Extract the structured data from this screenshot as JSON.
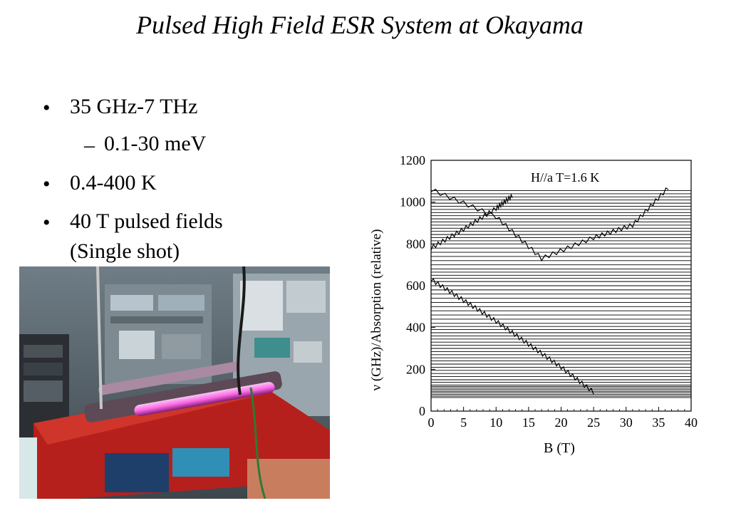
{
  "slide": {
    "title": "Pulsed High Field ESR System at Okayama",
    "bullets": [
      {
        "text": "35 GHz-7 THz",
        "level": 1
      },
      {
        "text": "0.1-30 meV",
        "level": 2
      },
      {
        "text": "0.4-400 K",
        "level": 1
      },
      {
        "text": "40 T pulsed fields",
        "level": 1
      },
      {
        "text": "(Single shot)",
        "level": 1
      }
    ],
    "markers": {
      "level1": "•",
      "level2": "–"
    }
  },
  "chart_data": {
    "type": "line",
    "title": "",
    "annotation": "H//a T=1.6 K",
    "xlabel": "B (T)",
    "ylabel": "ν (GHz)/Absorption (relative)",
    "xlim": [
      0,
      40
    ],
    "ylim": [
      0,
      1200
    ],
    "xticks": [
      0,
      5,
      10,
      15,
      20,
      25,
      30,
      35,
      40
    ],
    "yticks": [
      0,
      200,
      400,
      600,
      800,
      1000,
      1200
    ],
    "baseline_frequencies_ghz": [
      65,
      72,
      80,
      88,
      95,
      103,
      110,
      118,
      125,
      138,
      150,
      165,
      180,
      195,
      210,
      225,
      240,
      255,
      270,
      285,
      300,
      315,
      330,
      345,
      360,
      375,
      390,
      405,
      420,
      440,
      460,
      480,
      500,
      520,
      540,
      560,
      580,
      600,
      620,
      635,
      650,
      665,
      680,
      700,
      720,
      740,
      760,
      780,
      800,
      815,
      830,
      845,
      860,
      875,
      890,
      905,
      920,
      935,
      950,
      965,
      980,
      995,
      1010,
      1025,
      1040,
      1055
    ],
    "resonance_branches": [
      {
        "points": [
          [
            0,
            620
          ],
          [
            5,
            520
          ],
          [
            10,
            420
          ],
          [
            15,
            310
          ],
          [
            20,
            200
          ],
          [
            25,
            80
          ]
        ]
      },
      {
        "points": [
          [
            0,
            770
          ],
          [
            5,
            860
          ],
          [
            10,
            960
          ],
          [
            12.5,
            1020
          ]
        ]
      },
      {
        "points": [
          [
            0,
            1050
          ],
          [
            10,
            920
          ],
          [
            17,
            720
          ],
          [
            25,
            820
          ],
          [
            31,
            880
          ],
          [
            36.5,
            1060
          ]
        ]
      }
    ]
  }
}
